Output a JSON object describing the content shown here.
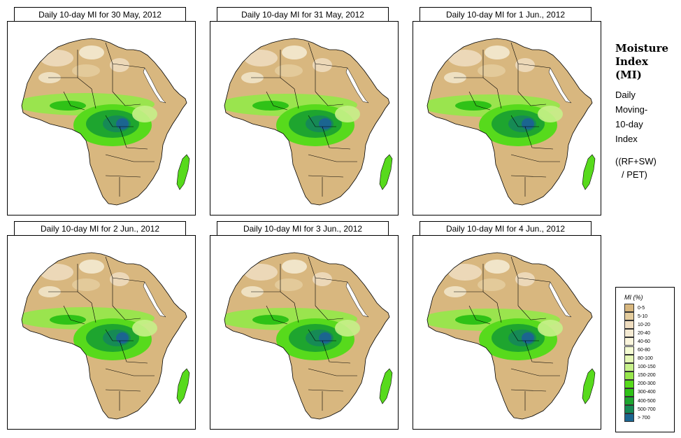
{
  "panels": [
    {
      "title": "Daily 10-day MI for  30 May, 2012"
    },
    {
      "title": "Daily 10-day MI for  31 May, 2012"
    },
    {
      "title": "Daily 10-day MI for  1 Jun., 2012"
    },
    {
      "title": "Daily 10-day MI for  2 Jun., 2012"
    },
    {
      "title": "Daily 10-day MI for  3 Jun., 2012"
    },
    {
      "title": "Daily 10-day MI for  4 Jun., 2012"
    }
  ],
  "side": {
    "title_line1": "Moisture",
    "title_line2": "Index",
    "title_line3": "(MI)",
    "desc_line1": "Daily",
    "desc_line2": "Moving-",
    "desc_line3": "10-day",
    "desc_line4": "Index",
    "formula_line1": "((RF+SW)",
    "formula_line2": "/ PET)"
  },
  "legend": {
    "title": "MI (%)",
    "classes": [
      {
        "label": "0-5",
        "color": "#d8b77f"
      },
      {
        "label": "5-10",
        "color": "#e4cc9d"
      },
      {
        "label": "10-20",
        "color": "#eedcbf"
      },
      {
        "label": "20-40",
        "color": "#f4ead2"
      },
      {
        "label": "40-60",
        "color": "#faf5dc"
      },
      {
        "label": "60-80",
        "color": "#f4fbd2"
      },
      {
        "label": "80-100",
        "color": "#e4f8b4"
      },
      {
        "label": "100-150",
        "color": "#c6f08a"
      },
      {
        "label": "150-200",
        "color": "#97e64c"
      },
      {
        "label": "200-300",
        "color": "#57da1c"
      },
      {
        "label": "300-400",
        "color": "#2fc217"
      },
      {
        "label": "400-500",
        "color": "#1ea52f"
      },
      {
        "label": "500-700",
        "color": "#168a55"
      },
      {
        "label": "> 700",
        "color": "#1b6590"
      }
    ]
  }
}
